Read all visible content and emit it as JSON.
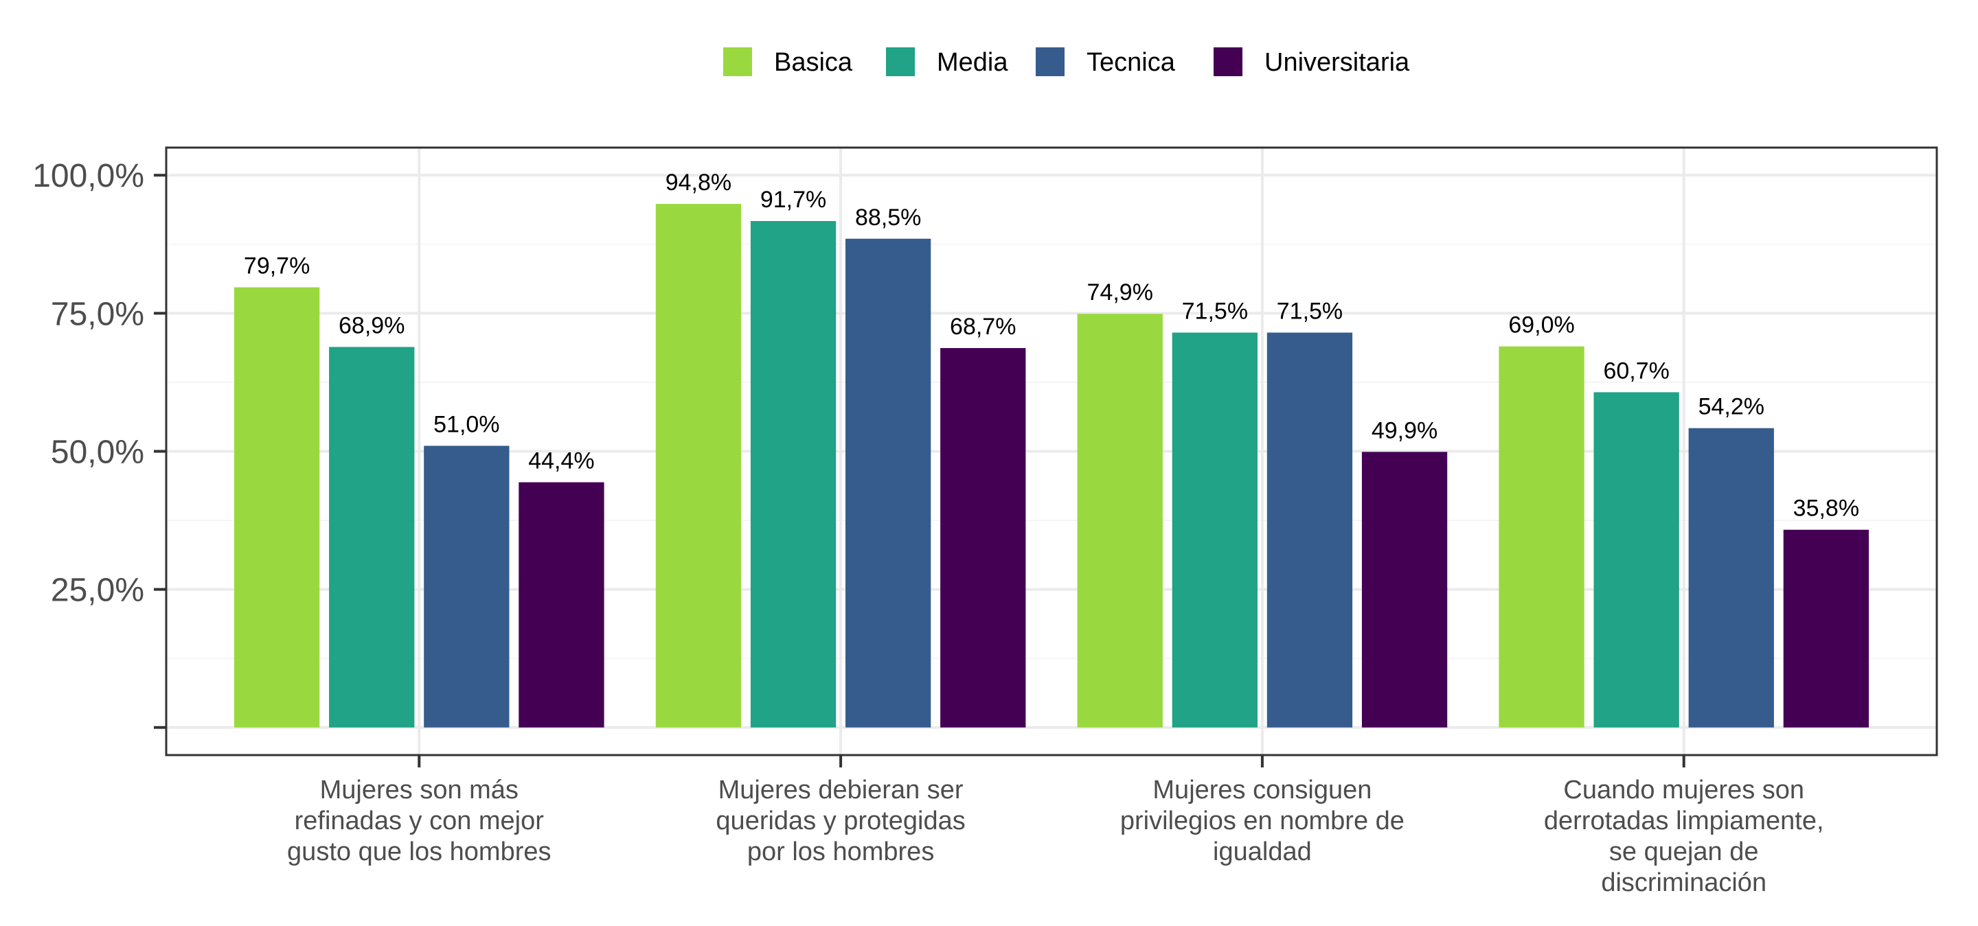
{
  "chart_data": {
    "type": "bar",
    "categories": [
      "Mujeres son más refinadas y con mejor gusto que los hombres",
      "Mujeres debieran ser queridas y protegidas por los hombres",
      "Mujeres consiguen privilegios en nombre de igualdad",
      "Cuando mujeres son derrotadas limpiamente, se quejan de discriminación"
    ],
    "category_lines": [
      [
        "Mujeres son más",
        "refinadas y con mejor",
        "gusto que los hombres"
      ],
      [
        "Mujeres debieran ser",
        "queridas y protegidas",
        "por los hombres"
      ],
      [
        "Mujeres consiguen",
        "privilegios en nombre de",
        "igualdad"
      ],
      [
        "Cuando mujeres son",
        "derrotadas limpiamente,",
        "se quejan de",
        "discriminación"
      ]
    ],
    "series": [
      {
        "name": "Basica",
        "color": "#99d93f",
        "values": [
          79.7,
          94.8,
          74.9,
          69.0
        ],
        "labels": [
          "79,7%",
          "94,8%",
          "74,9%",
          "69,0%"
        ]
      },
      {
        "name": "Media",
        "color": "#20a386",
        "values": [
          68.9,
          91.7,
          71.5,
          60.7
        ],
        "labels": [
          "68,9%",
          "91,7%",
          "71,5%",
          "60,7%"
        ]
      },
      {
        "name": "Tecnica",
        "color": "#365c8d",
        "values": [
          51.0,
          88.5,
          71.5,
          54.2
        ],
        "labels": [
          "51,0%",
          "88,5%",
          "71,5%",
          "54,2%"
        ]
      },
      {
        "name": "Universitaria",
        "color": "#440154",
        "values": [
          44.4,
          68.7,
          49.9,
          35.8
        ],
        "labels": [
          "44,4%",
          "68,7%",
          "49,9%",
          "35,8%"
        ]
      }
    ],
    "yticks": [
      0,
      25,
      50,
      75,
      100
    ],
    "ytick_labels": [
      "",
      "25,0%",
      "50,0%",
      "75,0%",
      "100,0%"
    ],
    "ylim": [
      -5,
      105
    ],
    "title": "",
    "xlabel": "",
    "ylabel": "",
    "legend_position": "top",
    "grid": true,
    "colors": {
      "grid_major": "#ebebeb",
      "grid_minor": "#f5f5f5",
      "panel_border": "#333333",
      "axis_text": "#4d4d4d"
    }
  }
}
